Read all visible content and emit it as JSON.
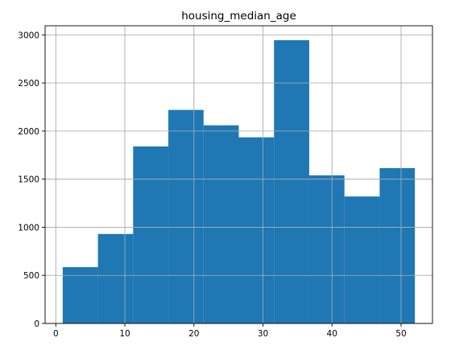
{
  "chart_data": {
    "type": "bar",
    "title": "housing_median_age",
    "xlabel": "",
    "ylabel": "",
    "xlim": [
      -1.55,
      54.55
    ],
    "ylim": [
      0,
      3095
    ],
    "xticks": [
      0,
      10,
      20,
      30,
      40,
      50
    ],
    "yticks": [
      0,
      500,
      1000,
      1500,
      2000,
      2500,
      3000
    ],
    "bins": [
      {
        "x0": 1.0,
        "x1": 6.1,
        "value": 585
      },
      {
        "x0": 6.1,
        "x1": 11.2,
        "value": 930
      },
      {
        "x0": 11.2,
        "x1": 16.3,
        "value": 1840
      },
      {
        "x0": 16.3,
        "x1": 21.4,
        "value": 2220
      },
      {
        "x0": 21.4,
        "x1": 26.5,
        "value": 2060
      },
      {
        "x0": 26.5,
        "x1": 31.6,
        "value": 1935
      },
      {
        "x0": 31.6,
        "x1": 36.7,
        "value": 2945
      },
      {
        "x0": 36.7,
        "x1": 41.8,
        "value": 1540
      },
      {
        "x0": 41.8,
        "x1": 46.9,
        "value": 1320
      },
      {
        "x0": 46.9,
        "x1": 52.0,
        "value": 1615
      }
    ],
    "bar_color": "#1f77b4",
    "grid": true,
    "grid_color": "#b0b0b0"
  }
}
